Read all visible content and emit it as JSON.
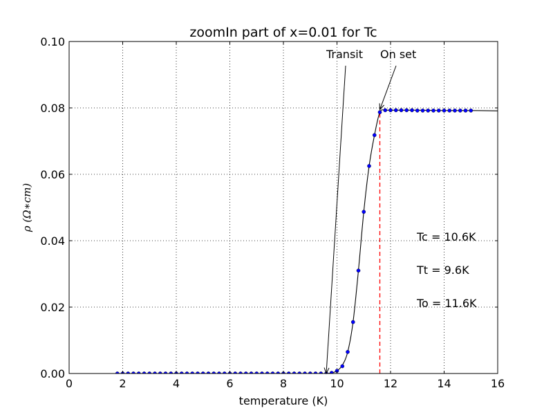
{
  "chart_data": {
    "type": "line",
    "title": "zoomIn part of x=0.01 for Tc",
    "xlabel": "temperature (K)",
    "ylabel": "ρ (Ω∗cm)",
    "xlim": [
      0,
      16
    ],
    "ylim": [
      0,
      0.1
    ],
    "xticks": [
      "0",
      "2",
      "4",
      "6",
      "8",
      "10",
      "12",
      "14",
      "16"
    ],
    "yticks": [
      "0.00",
      "0.02",
      "0.04",
      "0.06",
      "0.08",
      "0.10"
    ],
    "grid": true,
    "series": [
      {
        "style": "fit-line",
        "color": "#000000",
        "x": [
          1.8,
          9.0,
          9.6,
          9.8,
          10.0,
          10.2,
          10.4,
          10.6,
          10.8,
          11.0,
          11.2,
          11.4,
          11.6,
          11.8,
          12.0,
          13.0,
          14.0,
          15.0,
          16.0
        ],
        "y": [
          0.0,
          0.0,
          0.0,
          0.0002,
          0.0008,
          0.0025,
          0.0065,
          0.0155,
          0.031,
          0.0487,
          0.0625,
          0.0718,
          0.0787,
          0.0793,
          0.0793,
          0.0793,
          0.0792,
          0.0792,
          0.0791
        ]
      },
      {
        "style": "markers",
        "color": "#0000ff",
        "x": [
          1.8,
          2.0,
          2.2,
          2.4,
          2.6,
          2.8,
          3.0,
          3.2,
          3.4,
          3.6,
          3.8,
          4.0,
          4.2,
          4.4,
          4.6,
          4.8,
          5.0,
          5.2,
          5.4,
          5.6,
          5.8,
          6.0,
          6.2,
          6.4,
          6.6,
          6.8,
          7.0,
          7.2,
          7.4,
          7.6,
          7.8,
          8.0,
          8.2,
          8.4,
          8.6,
          8.8,
          9.0,
          9.2,
          9.4,
          9.6,
          9.8,
          10.0,
          10.2,
          10.4,
          10.6,
          10.8,
          11.0,
          11.2,
          11.4,
          11.6,
          11.8,
          12.0,
          12.2,
          12.4,
          12.6,
          12.8,
          13.0,
          13.2,
          13.4,
          13.6,
          13.8,
          14.0,
          14.2,
          14.4,
          14.6,
          14.8,
          15.0
        ],
        "y": [
          0,
          0,
          0,
          0,
          0,
          0,
          0,
          0,
          0,
          0,
          0,
          0,
          0,
          0,
          0,
          0,
          0,
          0,
          0,
          0,
          0,
          0,
          0,
          0,
          0,
          0,
          0,
          0,
          0,
          0,
          0,
          0,
          0,
          0,
          0,
          0,
          0,
          0,
          0,
          0,
          0.0002,
          0.0008,
          0.0022,
          0.0065,
          0.0155,
          0.031,
          0.0487,
          0.0625,
          0.0718,
          0.0787,
          0.0793,
          0.0793,
          0.0793,
          0.0793,
          0.0793,
          0.0793,
          0.0792,
          0.0792,
          0.0792,
          0.0792,
          0.0792,
          0.0792,
          0.0792,
          0.0792,
          0.0792,
          0.0792,
          0.0792
        ]
      }
    ],
    "vline": {
      "x": 11.6,
      "y": [
        0,
        0.0787
      ],
      "color": "#ff0000",
      "dashed": true
    },
    "annotations": [
      {
        "text": "Transit",
        "arrow_to": [
          9.6,
          0.0
        ]
      },
      {
        "text": "On set",
        "arrow_to": [
          11.6,
          0.0795
        ]
      }
    ],
    "text_notes": [
      "Tc = 10.6K",
      "Tt = 9.6K",
      "To = 11.6K"
    ]
  }
}
